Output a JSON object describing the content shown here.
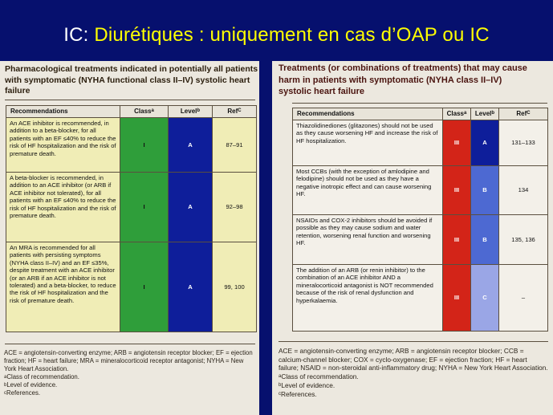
{
  "slide": {
    "title_prefix": "IC:",
    "title_main": "Diurétiques : uniquement en cas d’OAP ou IC"
  },
  "left_panel": {
    "heading": "Pharmacological treatments indicated in potentially all patients with symptomatic (NYHA functional class II–IV) systolic heart failure",
    "headers": {
      "recommendations": "Recommendations",
      "class": "Class",
      "level": "Level",
      "ref": "Ref"
    },
    "header_sups": {
      "class": "a",
      "level": "b",
      "ref": "C"
    },
    "rows": [
      {
        "text": "An ACE inhibitor is recommended, in addition to a beta-blocker, for all patients with an EF ≤40% to reduce the risk of HF hospitalization and the risk of premature death.",
        "class": "I",
        "level": "A",
        "ref": "87–91"
      },
      {
        "text": "A beta-blocker is recommended, in addition to an ACE inhibitor (or ARB if ACE inhibitor not tolerated), for all patients with an EF ≤40% to reduce the risk of HF hospitalization and the risk of premature death.",
        "class": "I",
        "level": "A",
        "ref": "92–98"
      },
      {
        "text": "An MRA is recommended for all patients with persisting symptoms (NYHA class II–IV) and an EF ≤35%, despite treatment with an ACE inhibitor (or an ARB if an ACE inhibitor is not tolerated) and a beta-blocker, to reduce the risk of HF hospitalization and the risk of premature death.",
        "class": "I",
        "level": "A",
        "ref": "99, 100"
      }
    ],
    "footnotes": [
      "ACE = angiotensin-converting enzyme; ARB = angiotensin receptor blocker; EF = ejection fraction; HF = heart failure; MRA = mineralocorticoid receptor antagonist; NYHA = New York Heart Association.",
      "Class of recommendation.",
      "Level of evidence.",
      "References."
    ],
    "footnote_markers": [
      "a",
      "b",
      "c"
    ]
  },
  "right_panel": {
    "heading": "Treatments (or combinations of treatments) that may cause harm in patients with symptomatic (NYHA class II–IV) systolic heart failure",
    "headers": {
      "recommendations": "Recommendations",
      "class": "Class",
      "level": "Level",
      "ref": "Ref"
    },
    "header_sups": {
      "class": "a",
      "level": "b",
      "ref": "C"
    },
    "rows": [
      {
        "text": "Thiazolidinediones (glitazones) should not be used as they cause worsening HF and increase the risk of HF hospitalization.",
        "class": "III",
        "level": "A",
        "ref": "131–133"
      },
      {
        "text": "Most CCBs (with the exception of amlodipine and felodipine) should not be used as they have a negative inotropic effect and can cause worsening HF.",
        "class": "III",
        "level": "B",
        "ref": "134"
      },
      {
        "text": "NSAIDs and COX-2 inhibitors should be avoided if possible as they may cause sodium and water retention, worsening renal function and worsening HF.",
        "class": "III",
        "level": "B",
        "ref": "135, 136"
      },
      {
        "text": "The addition of an ARB (or renin inhibitor) to the combination of an ACE inhibitor AND a mineralocorticoid antagonist is NOT recommended because of the risk of renal dysfunction and hyperkalaemia.",
        "class": "III",
        "level": "C",
        "ref": "–"
      }
    ],
    "footnotes": [
      "ACE = angiotensin-converting enzyme; ARB = angiotensin receptor blocker; CCB = calcium-channel blocker; COX = cyclo-oxygenase; EF = ejection fraction; HF = heart failure; NSAID = non-steroidal anti-inflammatory drug; NYHA = New York Heart Association.",
      "Class of recommendation.",
      "Level of evidence.",
      "References."
    ],
    "footnote_markers": [
      "a",
      "b",
      "c"
    ]
  },
  "colors": {
    "background": "#06106e",
    "title_prefix": "#ffffff",
    "title_main": "#ffff00",
    "class_I": "#2f9e3a",
    "level_A_left": "#0e1e9a",
    "class_III": "#d32418",
    "level_A_right": "#0e1e9a",
    "level_B": "#4d69d2",
    "level_C": "#9aa6e6"
  }
}
